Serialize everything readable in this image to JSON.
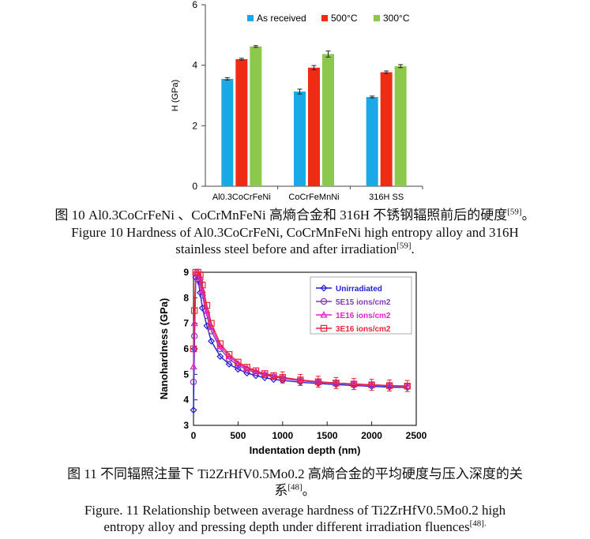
{
  "figure10": {
    "chart_data": {
      "type": "bar",
      "categories": [
        "Al0.3CoCrFeNi",
        "CoCrFeMnNi",
        "316H SS"
      ],
      "series": [
        {
          "name": "As received",
          "color": "#18a9e6",
          "values": [
            3.55,
            3.13,
            2.95
          ],
          "errors": [
            0.04,
            0.08,
            0.03
          ]
        },
        {
          "name": "500°C",
          "color": "#ee2c14",
          "values": [
            4.2,
            3.92,
            3.77
          ],
          "errors": [
            0.03,
            0.07,
            0.04
          ]
        },
        {
          "name": "300°C",
          "color": "#8cc84b",
          "values": [
            4.62,
            4.37,
            3.97
          ],
          "errors": [
            0.03,
            0.1,
            0.05
          ]
        }
      ],
      "title": "",
      "xlabel": "",
      "ylabel": "H (GPa)",
      "ylim": [
        0,
        6
      ],
      "yticks": [
        "0",
        "2",
        "4",
        "6"
      ],
      "legend": "top-right"
    },
    "caption_cn_pre": "图 10 Al0.3CoCrFeNi 、CoCrMnFeNi 高熵合金和 316H 不锈钢辐照前后的硬度",
    "caption_cn_ref": "[59]",
    "caption_cn_post": "。",
    "caption_en_line1": "Figure 10 Hardness of Al0.3CoCrFeNi, CoCrMnFeNi high entropy alloy and 316H",
    "caption_en_line2_pre": "stainless steel before and after irradiation",
    "caption_en_ref": "[59]",
    "caption_en_post": "."
  },
  "figure11": {
    "chart_data": {
      "type": "scatter",
      "title": "",
      "xlabel": "Indentation depth (nm)",
      "ylabel": "Nanohardness (GPa)",
      "xlim": [
        0,
        2500
      ],
      "ylim": [
        3,
        9
      ],
      "xticks": [
        "0",
        "500",
        "1000",
        "1500",
        "2000",
        "2500"
      ],
      "yticks": [
        "3",
        "4",
        "5",
        "6",
        "7",
        "8",
        "9"
      ],
      "legend": "top-right",
      "series": [
        {
          "name": "Unirradiated",
          "color": "#1f1fd6",
          "marker": "diamond",
          "x": [
            0,
            10,
            25,
            50,
            75,
            100,
            150,
            200,
            300,
            400,
            500,
            600,
            700,
            800,
            900,
            1000,
            1200,
            1400,
            1600,
            1800,
            2000,
            2200,
            2400
          ],
          "y": [
            3.6,
            6.0,
            8.8,
            8.7,
            8.2,
            7.6,
            6.9,
            6.3,
            5.7,
            5.4,
            5.2,
            5.05,
            4.95,
            4.87,
            4.8,
            4.76,
            4.69,
            4.64,
            4.6,
            4.56,
            4.53,
            4.5,
            4.48
          ]
        },
        {
          "name": "5E15 ions/cm2",
          "color": "#8a3ab9",
          "marker": "circle",
          "x": [
            0,
            10,
            25,
            50,
            75,
            100,
            150,
            200,
            300,
            400,
            500,
            600,
            700,
            800,
            900,
            1000,
            1200,
            1400,
            1600,
            1800,
            2000,
            2200,
            2400
          ],
          "y": [
            4.7,
            6.5,
            8.8,
            8.9,
            8.6,
            8.1,
            7.3,
            6.7,
            6.0,
            5.6,
            5.35,
            5.18,
            5.06,
            4.97,
            4.9,
            4.84,
            4.75,
            4.69,
            4.65,
            4.61,
            4.58,
            4.55,
            4.53
          ]
        },
        {
          "name": "1E16 ions/cm2",
          "color": "#e61fce",
          "marker": "triangle",
          "x": [
            0,
            10,
            25,
            50,
            75,
            100,
            150,
            200,
            300,
            400,
            500,
            600,
            700,
            800,
            900,
            1000,
            1200,
            1400,
            1600,
            1800,
            2000,
            2200,
            2400
          ],
          "y": [
            5.3,
            7.0,
            9.0,
            9.0,
            8.8,
            8.3,
            7.5,
            6.85,
            6.1,
            5.7,
            5.42,
            5.24,
            5.11,
            5.01,
            4.93,
            4.87,
            4.77,
            4.71,
            4.66,
            4.62,
            4.59,
            4.56,
            4.54
          ]
        },
        {
          "name": "3E16 ions/cm2",
          "color": "#e8253a",
          "marker": "square",
          "x": [
            0,
            10,
            25,
            50,
            75,
            100,
            150,
            200,
            300,
            400,
            500,
            600,
            700,
            800,
            900,
            1000,
            1200,
            1400,
            1600,
            1800,
            2000,
            2200,
            2400
          ],
          "y": [
            6.0,
            7.5,
            9.0,
            9.0,
            8.9,
            8.5,
            7.7,
            7.0,
            6.2,
            5.78,
            5.48,
            5.28,
            5.14,
            5.03,
            4.95,
            4.88,
            4.78,
            4.71,
            4.66,
            4.62,
            4.59,
            4.56,
            4.54
          ]
        }
      ]
    },
    "caption_cn_line1": "图 11  不同辐照注量下 Ti2ZrHfV0.5Mo0.2  高熵合金的平均硬度与压入深度的关",
    "caption_cn_line2_pre": "系",
    "caption_cn_ref": "[48]",
    "caption_cn_post": "。",
    "caption_en_line1": "Figure. 11 Relationship between average hardness of Ti2ZrHfV0.5Mo0.2 high",
    "caption_en_line2_pre": "entropy alloy and pressing depth under different irradiation fluences",
    "caption_en_ref": "[48]."
  }
}
